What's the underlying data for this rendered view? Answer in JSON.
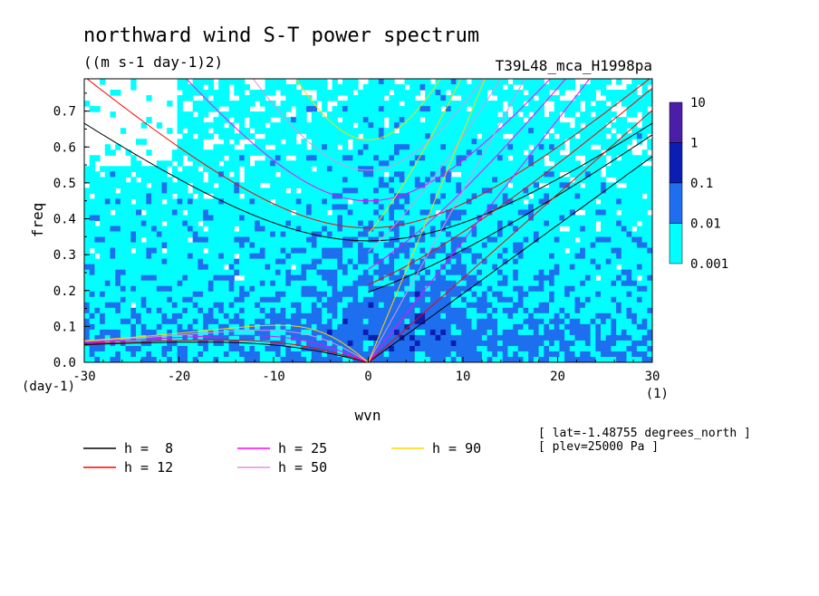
{
  "chart_data": {
    "type": "heatmap",
    "title": "northward wind S-T power spectrum",
    "units": "((m s-1 day-1)2)",
    "run_label": "T39L48_mca_H1998pa",
    "xlabel": "wvn",
    "ylabel": "freq",
    "x_unit": "(1)",
    "y_unit": "(day-1)",
    "xlim": [
      -30,
      30
    ],
    "ylim": [
      0,
      0.79
    ],
    "xticks": [
      "-30",
      "-20",
      "-10",
      "0",
      "10",
      "20",
      "30"
    ],
    "yticks": [
      "0.0",
      "0.1",
      "0.2",
      "0.3",
      "0.4",
      "0.5",
      "0.6",
      "0.7"
    ],
    "colorbar": {
      "labels": [
        "10",
        "1",
        "0.1",
        "0.01",
        "0.001"
      ],
      "levels": [
        0.001,
        0.01,
        0.1,
        1,
        10
      ],
      "colors": [
        "#00ffff",
        "#1e6ef0",
        "#0a1eb4",
        "#4b1eaa"
      ]
    },
    "contour_fill": {
      "background": "#ffffff",
      "bands": [
        {
          "range": "0.001-0.01",
          "color": "#00ffff"
        },
        {
          "range": "0.01-0.1",
          "color": "#1e6ef0"
        },
        {
          "range": "0.1-1",
          "color": "#0a1eb4"
        }
      ]
    },
    "dispersion_curves": [
      {
        "label": "h =  8",
        "h": 8,
        "color": "#000000"
      },
      {
        "label": "h = 12",
        "h": 12,
        "color": "#ff0000"
      },
      {
        "label": "h = 25",
        "h": 25,
        "color": "#ff00ff"
      },
      {
        "label": "h = 50",
        "h": 50,
        "color": "#e090e0"
      },
      {
        "label": "h = 90",
        "h": 90,
        "color": "#ffd700"
      }
    ],
    "notes": [
      "[ lat=-1.48755 degrees_north ]",
      "[ plev=25000 Pa ]"
    ]
  }
}
